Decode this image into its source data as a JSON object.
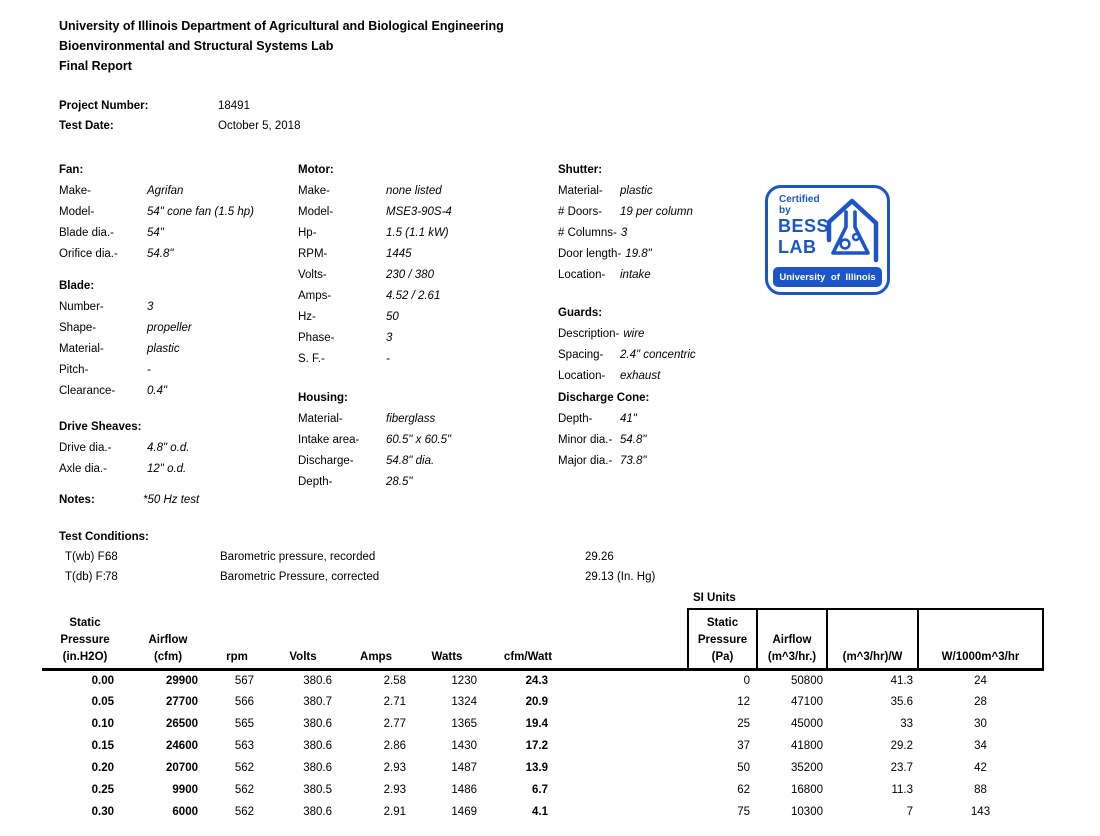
{
  "colors": {
    "logo_blue": "#1b55c8",
    "text": "#000000",
    "background": "#ffffff"
  },
  "header": {
    "line1": "University of Illinois Department of Agricultural and Biological Engineering",
    "line2": "Bioenvironmental and Structural Systems Lab",
    "line3": "Final Report",
    "project_number_label": "Project Number:",
    "project_number": "18491",
    "test_date_label": "Test  Date:",
    "test_date": "October 5, 2018"
  },
  "specs": {
    "fan": {
      "title": "Fan:",
      "rows": [
        [
          "Make-",
          "Agrifan"
        ],
        [
          "Model-",
          "54\" cone fan (1.5 hp)"
        ],
        [
          "Blade dia.-",
          "54\""
        ],
        [
          "Orifice dia.-",
          "54.8\""
        ]
      ]
    },
    "blade": {
      "title": "Blade:",
      "rows": [
        [
          "Number-",
          "3"
        ],
        [
          "Shape-",
          "propeller"
        ],
        [
          "Material-",
          "plastic"
        ],
        [
          "Pitch-",
          "-"
        ],
        [
          "Clearance-",
          "0.4\""
        ]
      ]
    },
    "drive_sheaves": {
      "title": "Drive Sheaves:",
      "rows": [
        [
          "Drive dia.-",
          "4.8\" o.d."
        ],
        [
          "Axle dia.-",
          "12\" o.d."
        ]
      ]
    },
    "motor": {
      "title": "Motor:",
      "rows": [
        [
          "Make-",
          "none listed"
        ],
        [
          "Model-",
          "MSE3-90S-4"
        ],
        [
          "Hp-",
          "1.5 (1.1 kW)"
        ],
        [
          "RPM-",
          "1445"
        ],
        [
          "Volts-",
          "230 / 380"
        ],
        [
          "Amps-",
          "4.52 / 2.61"
        ],
        [
          "Hz-",
          "50"
        ],
        [
          "Phase-",
          "3"
        ],
        [
          "S. F.-",
          "-"
        ]
      ]
    },
    "housing": {
      "title": "Housing:",
      "rows": [
        [
          "Material-",
          "fiberglass"
        ],
        [
          "Intake area-",
          "60.5\" x 60.5\""
        ],
        [
          "Discharge-",
          "54.8\" dia."
        ],
        [
          "Depth-",
          "28.5\""
        ]
      ]
    },
    "shutter": {
      "title": "Shutter:",
      "rows": [
        [
          "Material-",
          "plastic"
        ],
        [
          "# Doors-",
          "19 per column"
        ],
        [
          "# Columns-",
          "3"
        ],
        [
          "Door length-",
          "19.8\""
        ],
        [
          "Location-",
          "intake"
        ]
      ]
    },
    "guards": {
      "title": "Guards:",
      "rows": [
        [
          "Description-",
          "wire"
        ],
        [
          "Spacing-",
          "2.4\" concentric"
        ],
        [
          "Location-",
          "exhaust"
        ]
      ]
    },
    "discharge_cone": {
      "title": "Discharge Cone:",
      "rows": [
        [
          "Depth-",
          "41\""
        ],
        [
          "Minor dia.-",
          "54.8\""
        ],
        [
          "Major dia.-",
          "73.8\""
        ]
      ]
    },
    "notes": {
      "title": "Notes:",
      "value": "*50 Hz test"
    }
  },
  "logo": {
    "certified": "Certified",
    "by": "by",
    "bess": "BESS",
    "lab": "LAB",
    "banner": "University of Illinois"
  },
  "test_conditions": {
    "title": "Test Conditions:",
    "rows": [
      {
        "label": "T(wb) F:",
        "value": "68",
        "desc": "Barometric pressure, recorded",
        "reading": "29.26"
      },
      {
        "label": "T(db) F:",
        "value": "78",
        "desc": "Barometric Pressure, corrected",
        "reading": "29.13 (In. Hg)"
      }
    ]
  },
  "table": {
    "si_units_label": "SI Units",
    "columns": [
      {
        "key": "sp",
        "group": "left",
        "lines": [
          "Static",
          "Pressure",
          "(in.H2O)"
        ]
      },
      {
        "key": "cfm",
        "group": "left",
        "lines": [
          "Airflow",
          "(cfm)"
        ]
      },
      {
        "key": "rpm",
        "group": "left",
        "lines": [
          "rpm"
        ]
      },
      {
        "key": "volts",
        "group": "left",
        "lines": [
          "Volts"
        ]
      },
      {
        "key": "amps",
        "group": "left",
        "lines": [
          "Amps"
        ]
      },
      {
        "key": "watts",
        "group": "left",
        "lines": [
          "Watts"
        ]
      },
      {
        "key": "cfm_watt",
        "group": "left",
        "lines": [
          "cfm/Watt"
        ]
      },
      {
        "key": "spacer",
        "group": "spacer",
        "lines": []
      },
      {
        "key": "pa",
        "group": "si",
        "lines": [
          "Static",
          "Pressure",
          "(Pa)"
        ]
      },
      {
        "key": "m3hr",
        "group": "si",
        "lines": [
          "Airflow",
          "(m^3/hr.)"
        ]
      },
      {
        "key": "m3hr_w",
        "group": "si",
        "lines": [
          "(m^3/hr)/W"
        ]
      },
      {
        "key": "w_1000",
        "group": "si",
        "lines": [
          "W/1000m^3/hr"
        ]
      }
    ],
    "rows": [
      [
        "0.00",
        "29900",
        "567",
        "380.6",
        "2.58",
        "1230",
        "24.3",
        "",
        "0",
        "50800",
        "41.3",
        "24"
      ],
      [
        "0.05",
        "27700",
        "566",
        "380.7",
        "2.71",
        "1324",
        "20.9",
        "",
        "12",
        "47100",
        "35.6",
        "28"
      ],
      [
        "0.10",
        "26500",
        "565",
        "380.6",
        "2.77",
        "1365",
        "19.4",
        "",
        "25",
        "45000",
        "33",
        "30"
      ],
      [
        "0.15",
        "24600",
        "563",
        "380.6",
        "2.86",
        "1430",
        "17.2",
        "",
        "37",
        "41800",
        "29.2",
        "34"
      ],
      [
        "0.20",
        "20700",
        "562",
        "380.6",
        "2.93",
        "1487",
        "13.9",
        "",
        "50",
        "35200",
        "23.7",
        "42"
      ],
      [
        "0.25",
        "9900",
        "562",
        "380.5",
        "2.93",
        "1486",
        "6.7",
        "",
        "62",
        "16800",
        "11.3",
        "88"
      ],
      [
        "0.30",
        "6000",
        "562",
        "380.6",
        "2.91",
        "1469",
        "4.1",
        "",
        "75",
        "10300",
        "7",
        "143"
      ]
    ]
  }
}
